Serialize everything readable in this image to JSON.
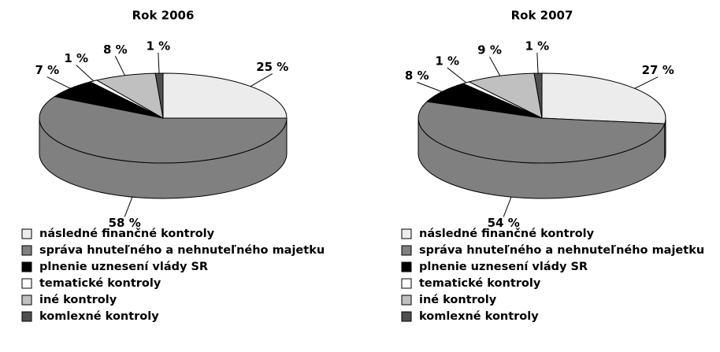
{
  "chart_data": [
    {
      "type": "pie",
      "title": "Rok 2006",
      "categories": [
        "následné finančné kontroly",
        "správa hnuteľného a nehnuteľného majetku",
        "plnenie uznesení vlády SR",
        "tematické kontroly",
        "iné kontroly",
        "komlexné kontroly"
      ],
      "values": [
        25,
        58,
        7,
        1,
        8,
        1
      ],
      "value_labels": [
        "25 %",
        "58 %",
        "7 %",
        "1 %",
        "8 %",
        "1 %"
      ],
      "colors": [
        "#ececec",
        "#808080",
        "#000000",
        "#ffffff",
        "#c0c0c0",
        "#505050"
      ]
    },
    {
      "type": "pie",
      "title": "Rok 2007",
      "categories": [
        "následné finančné kontroly",
        "správa hnuteľného a nehnuteľného majetku",
        "plnenie uznesení vlády SR",
        "tematické kontroly",
        "iné kontroly",
        "komlexné kontroly"
      ],
      "values": [
        27,
        54,
        8,
        1,
        9,
        1
      ],
      "value_labels": [
        "27 %",
        "54 %",
        "8 %",
        "1 %",
        "9 %",
        "1 %"
      ],
      "colors": [
        "#ececec",
        "#808080",
        "#000000",
        "#ffffff",
        "#c0c0c0",
        "#505050"
      ]
    }
  ]
}
